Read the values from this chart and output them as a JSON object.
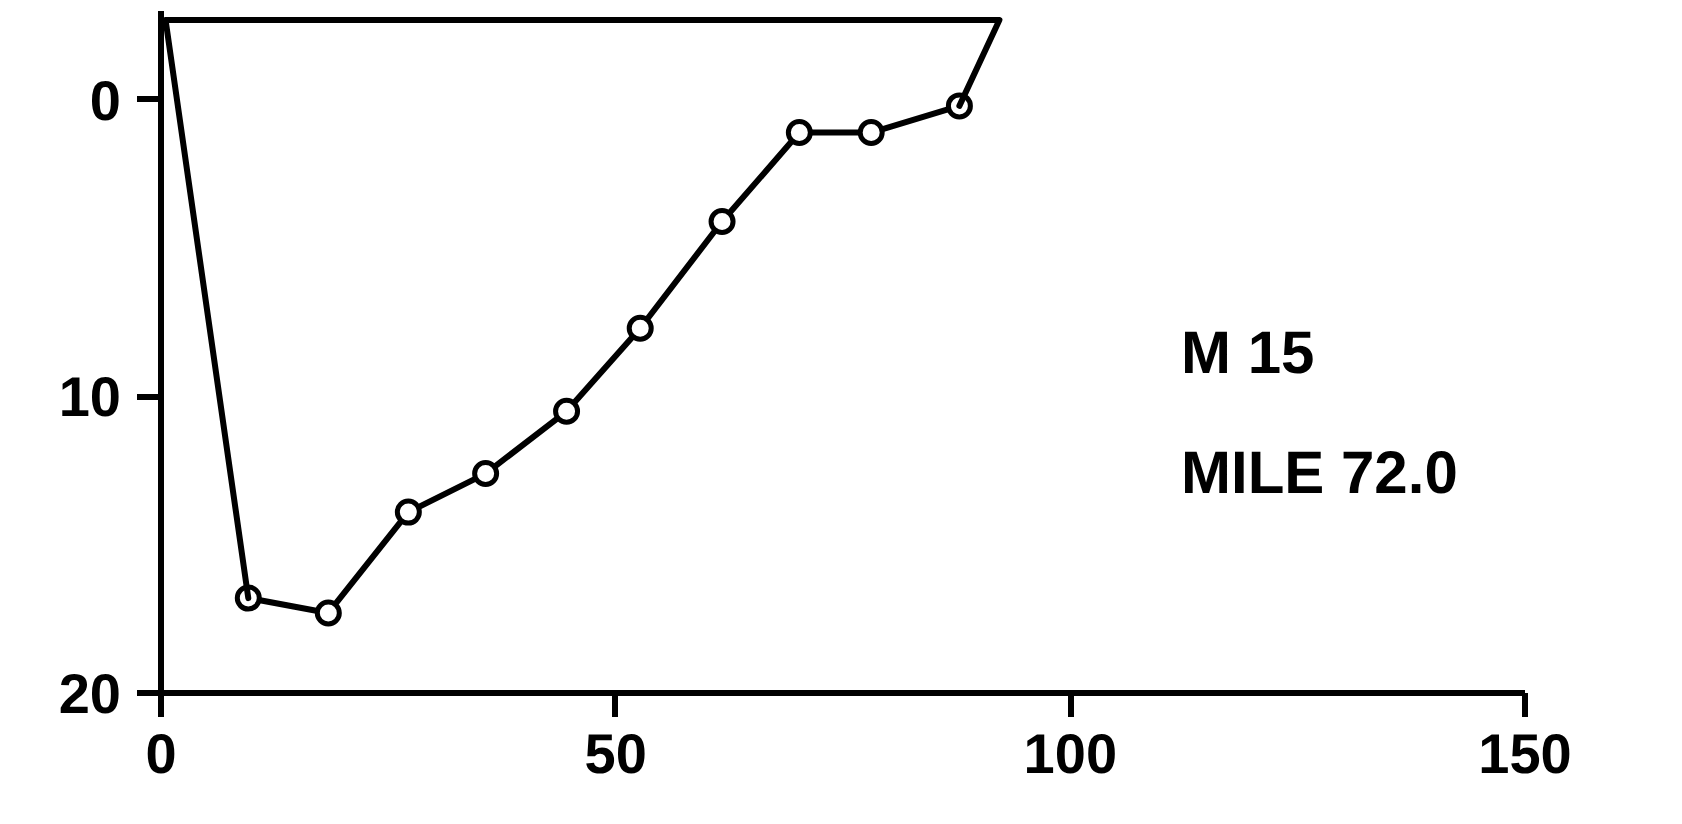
{
  "chart_data": {
    "type": "line",
    "xlim": [
      0,
      150
    ],
    "xticks": [
      0,
      50,
      100,
      150
    ],
    "ylim": [
      20,
      -3
    ],
    "yticks": [
      0,
      10,
      20
    ],
    "grid": false,
    "series": [
      {
        "color": "#000000",
        "marker": "circle",
        "x": [
          9.6,
          18.4,
          27.2,
          35.7,
          44.6,
          52.7,
          61.7,
          70.2,
          78.1,
          87.8
        ],
        "values": [
          16.8,
          17.3,
          13.9,
          12.6,
          10.5,
          7.7,
          4.1,
          1.1,
          1.1,
          0.2
        ]
      },
      {
        "color": "#000000",
        "marker": "none",
        "x": [
          87.8,
          92.2,
          0.5,
          9.6
        ],
        "values": [
          0.2,
          -2.7,
          -2.7,
          16.8
        ]
      }
    ],
    "annotations": [
      "M 15",
      "MILE 72.0"
    ]
  }
}
